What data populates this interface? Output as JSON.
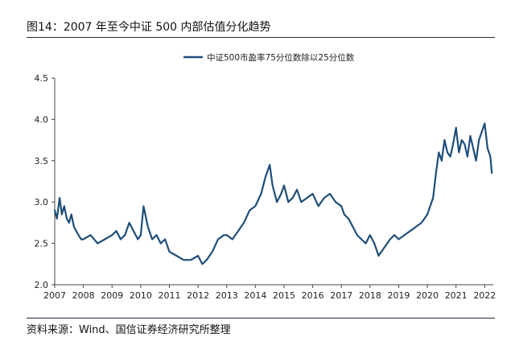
{
  "figure": {
    "title": "图14：2007 年至今中证 500 内部估值分化趋势",
    "source": "资料来源：Wind、国信证券经济研究所整理"
  },
  "chart_data": {
    "type": "line",
    "title": "",
    "xlabel": "",
    "ylabel": "",
    "legend_position": "top-center",
    "x_ticks": [
      "2007",
      "2008",
      "2009",
      "2010",
      "2011",
      "2012",
      "2013",
      "2014",
      "2015",
      "2016",
      "2017",
      "2018",
      "2019",
      "2020",
      "2021",
      "2022"
    ],
    "y_ticks": [
      "2.0",
      "2.5",
      "3.0",
      "3.5",
      "4.0",
      "4.5"
    ],
    "xlim": [
      2007.0,
      2022.3
    ],
    "ylim": [
      2.0,
      4.5
    ],
    "series": [
      {
        "name": "中证500市盈率75分位数除以25分位数",
        "color": "#1f4e79",
        "x": [
          2007.0,
          2007.08,
          2007.17,
          2007.25,
          2007.33,
          2007.42,
          2007.5,
          2007.58,
          2007.67,
          2007.75,
          2007.83,
          2007.92,
          2008.0,
          2008.25,
          2008.5,
          2008.75,
          2009.0,
          2009.15,
          2009.3,
          2009.45,
          2009.6,
          2009.75,
          2009.9,
          2010.0,
          2010.1,
          2010.25,
          2010.4,
          2010.55,
          2010.7,
          2010.85,
          2011.0,
          2011.25,
          2011.5,
          2011.75,
          2012.0,
          2012.15,
          2012.3,
          2012.5,
          2012.7,
          2012.9,
          2013.0,
          2013.2,
          2013.4,
          2013.6,
          2013.8,
          2014.0,
          2014.2,
          2014.35,
          2014.5,
          2014.6,
          2014.75,
          2014.9,
          2015.0,
          2015.15,
          2015.3,
          2015.45,
          2015.6,
          2015.8,
          2016.0,
          2016.2,
          2016.4,
          2016.6,
          2016.8,
          2017.0,
          2017.1,
          2017.25,
          2017.4,
          2017.55,
          2017.7,
          2017.85,
          2018.0,
          2018.15,
          2018.3,
          2018.5,
          2018.7,
          2018.85,
          2019.0,
          2019.2,
          2019.4,
          2019.6,
          2019.8,
          2020.0,
          2020.1,
          2020.2,
          2020.3,
          2020.4,
          2020.5,
          2020.6,
          2020.7,
          2020.8,
          2020.9,
          2021.0,
          2021.1,
          2021.2,
          2021.3,
          2021.4,
          2021.5,
          2021.6,
          2021.7,
          2021.8,
          2021.9,
          2022.0,
          2022.1,
          2022.2,
          2022.25
        ],
        "values": [
          2.9,
          2.8,
          3.05,
          2.85,
          2.95,
          2.8,
          2.75,
          2.85,
          2.7,
          2.65,
          2.6,
          2.55,
          2.55,
          2.6,
          2.5,
          2.55,
          2.6,
          2.65,
          2.55,
          2.6,
          2.75,
          2.65,
          2.55,
          2.6,
          2.95,
          2.7,
          2.55,
          2.6,
          2.5,
          2.55,
          2.4,
          2.35,
          2.3,
          2.3,
          2.35,
          2.25,
          2.3,
          2.4,
          2.55,
          2.6,
          2.6,
          2.55,
          2.65,
          2.75,
          2.9,
          2.95,
          3.1,
          3.3,
          3.45,
          3.2,
          3.0,
          3.1,
          3.2,
          3.0,
          3.05,
          3.15,
          3.0,
          3.05,
          3.1,
          2.95,
          3.05,
          3.1,
          3.0,
          2.95,
          2.85,
          2.8,
          2.7,
          2.6,
          2.55,
          2.5,
          2.6,
          2.5,
          2.35,
          2.45,
          2.55,
          2.6,
          2.55,
          2.6,
          2.65,
          2.7,
          2.75,
          2.85,
          2.95,
          3.05,
          3.35,
          3.6,
          3.5,
          3.75,
          3.6,
          3.55,
          3.7,
          3.9,
          3.6,
          3.75,
          3.7,
          3.55,
          3.8,
          3.65,
          3.5,
          3.75,
          3.85,
          3.95,
          3.65,
          3.55,
          3.35
        ]
      }
    ]
  }
}
